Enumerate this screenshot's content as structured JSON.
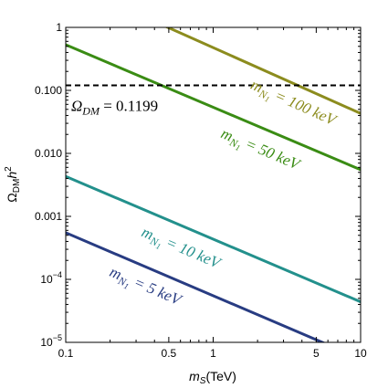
{
  "chart_data": {
    "type": "line",
    "title": "",
    "xlabel": "m_S(TeV)",
    "ylabel": "Ω_DM h^2",
    "xscale": "log",
    "yscale": "log",
    "xlim": [
      0.1,
      10
    ],
    "ylim": [
      1e-05,
      1
    ],
    "grid": false,
    "x_ticks": [
      {
        "value": 0.1,
        "label": "0.1"
      },
      {
        "value": 0.5,
        "label": "0.5"
      },
      {
        "value": 1,
        "label": "1"
      },
      {
        "value": 5,
        "label": "5"
      },
      {
        "value": 10,
        "label": "10"
      }
    ],
    "y_ticks": [
      {
        "value": 1e-05,
        "label": "10^-5"
      },
      {
        "value": 0.0001,
        "label": "10^-4"
      },
      {
        "value": 0.001,
        "label": "0.001"
      },
      {
        "value": 0.01,
        "label": "0.010"
      },
      {
        "value": 0.1,
        "label": "0.100"
      },
      {
        "value": 1,
        "label": "1"
      }
    ],
    "series": [
      {
        "name": "m_N1 = 100 keV",
        "color": "#8c8c1e",
        "x": [
          0.1,
          10
        ],
        "y": [
          5.3,
          0.043
        ]
      },
      {
        "name": "m_N1 = 50 keV",
        "color": "#3a8c14",
        "x": [
          0.1,
          10
        ],
        "y": [
          0.53,
          0.0055
        ]
      },
      {
        "name": "m_N1 = 10 keV",
        "color": "#23908c",
        "x": [
          0.1,
          10
        ],
        "y": [
          0.0043,
          4.4e-05
        ]
      },
      {
        "name": "m_N1 = 5 keV",
        "color": "#283c82",
        "x": [
          0.1,
          10
        ],
        "y": [
          0.00055,
          5.5e-06
        ]
      }
    ],
    "reference_line": {
      "label": "Ω_DM = 0.1199",
      "y": 0.1199,
      "style": "dashed",
      "color": "#000000"
    }
  }
}
